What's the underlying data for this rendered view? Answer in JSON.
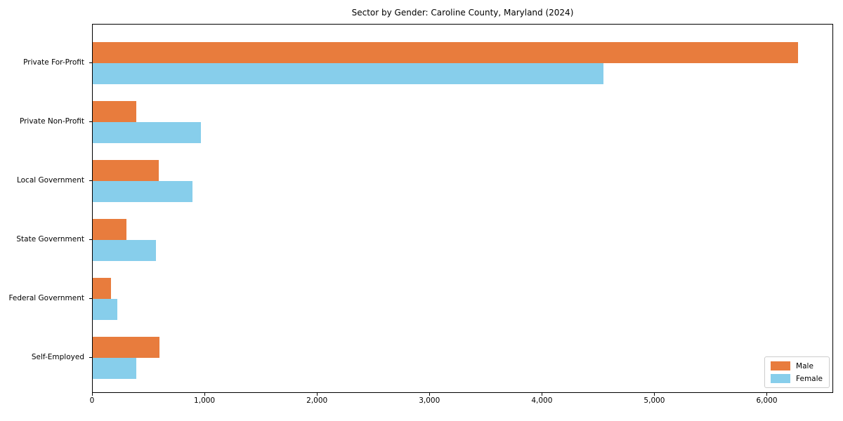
{
  "chart_data": {
    "type": "bar",
    "orientation": "horizontal",
    "title": "Sector by Gender: Caroline County, Maryland (2024)",
    "categories": [
      "Private For-Profit",
      "Private Non-Profit",
      "Local Government",
      "State Government",
      "Federal Government",
      "Self-Employed"
    ],
    "series": [
      {
        "name": "Male",
        "color": "#e87c3d",
        "values": [
          6270,
          385,
          585,
          300,
          160,
          595
        ]
      },
      {
        "name": "Female",
        "color": "#87ceeb",
        "values": [
          4540,
          960,
          890,
          560,
          220,
          390
        ]
      }
    ],
    "xlabel": "",
    "ylabel": "",
    "xlim": [
      0,
      6590
    ],
    "xticks": {
      "values": [
        0,
        1000,
        2000,
        3000,
        4000,
        5000,
        6000
      ],
      "labels": [
        "0",
        "1,000",
        "2,000",
        "3,000",
        "4,000",
        "5,000",
        "6,000"
      ]
    },
    "legend": {
      "position": "lower right",
      "labels": [
        "Male",
        "Female"
      ]
    },
    "grid": false,
    "plot_background": "#ffffff",
    "axis_color": "#000000"
  }
}
